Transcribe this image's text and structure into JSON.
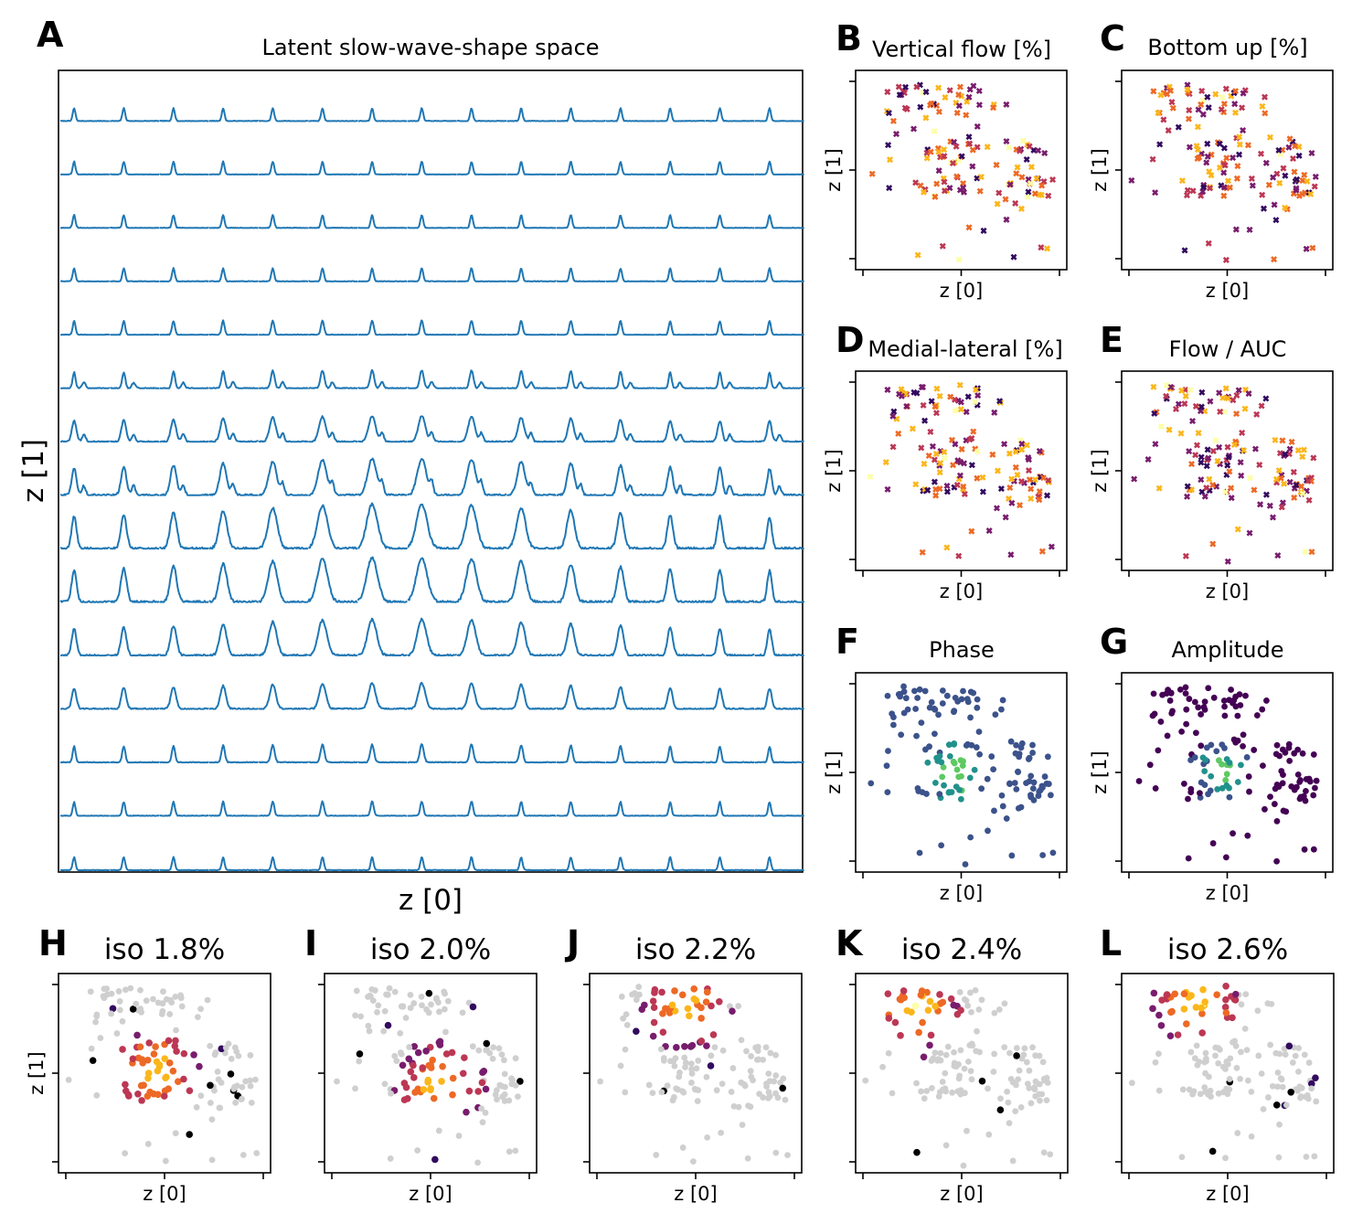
{
  "figure": {
    "panel_letters": [
      "A",
      "B",
      "C",
      "D",
      "E",
      "F",
      "G",
      "H",
      "I",
      "J",
      "K",
      "L"
    ]
  },
  "colors": {
    "wave_line": "#1f77b4",
    "grey_point": "#cfcfcf",
    "inferno": [
      "#000004",
      "#320a5e",
      "#781c6d",
      "#bc3754",
      "#ed6925",
      "#fbb61a",
      "#fcffa4"
    ],
    "viridis": [
      "#440154",
      "#3b528b",
      "#21918c",
      "#5ec962",
      "#fde725"
    ]
  },
  "chart_data": [
    {
      "id": "A",
      "type": "line",
      "title": "Latent slow-wave-shape space",
      "xlabel": "z [0]",
      "ylabel": "z [1]",
      "grid": false,
      "legend": "none",
      "grid_rows": 15,
      "grid_cols": 15,
      "series_description": "15x15 grid of decoded slow-wave traces"
    },
    {
      "id": "B",
      "type": "scatter",
      "title": "Vertical flow [%]",
      "xlabel": "z [0]",
      "ylabel": "z [1]",
      "colormap": "inferno",
      "marker": "x",
      "seed": 11
    },
    {
      "id": "C",
      "type": "scatter",
      "title": "Bottom up [%]",
      "xlabel": "z [0]",
      "ylabel": "z [1]",
      "colormap": "inferno",
      "marker": "x",
      "seed": 23
    },
    {
      "id": "D",
      "type": "scatter",
      "title": "Medial-lateral [%]",
      "xlabel": "z [0]",
      "ylabel": "z [1]",
      "colormap": "inferno",
      "marker": "x",
      "seed": 37
    },
    {
      "id": "E",
      "type": "scatter",
      "title": "Flow / AUC",
      "xlabel": "z [0]",
      "ylabel": "z [1]",
      "colormap": "inferno",
      "marker": "x",
      "seed": 41
    },
    {
      "id": "F",
      "type": "scatter",
      "title": "Phase",
      "xlabel": "z [0]",
      "ylabel": "z [1]",
      "colormap": "viridis",
      "marker": "dot",
      "seed": 53
    },
    {
      "id": "G",
      "type": "scatter",
      "title": "Amplitude",
      "xlabel": "z [0]",
      "ylabel": "z [1]",
      "colormap": "viridis",
      "marker": "dot",
      "seed": 67
    },
    {
      "id": "H",
      "type": "scatter",
      "title": "iso 1.8%",
      "xlabel": "z [0]",
      "ylabel": "z [1]",
      "colormap": "inferno",
      "marker": "dot",
      "seed": 71
    },
    {
      "id": "I",
      "type": "scatter",
      "title": "iso 2.0%",
      "xlabel": "z [0]",
      "ylabel": "",
      "colormap": "inferno",
      "marker": "dot",
      "seed": 83
    },
    {
      "id": "J",
      "type": "scatter",
      "title": "iso 2.2%",
      "xlabel": "z [0]",
      "ylabel": "",
      "colormap": "inferno",
      "marker": "dot",
      "seed": 97
    },
    {
      "id": "K",
      "type": "scatter",
      "title": "iso 2.4%",
      "xlabel": "z [0]",
      "ylabel": "",
      "colormap": "inferno",
      "marker": "dot",
      "seed": 101
    },
    {
      "id": "L",
      "type": "scatter",
      "title": "iso 2.6%",
      "xlabel": "z [0]",
      "ylabel": "",
      "colormap": "inferno",
      "marker": "dot",
      "seed": 113
    }
  ]
}
